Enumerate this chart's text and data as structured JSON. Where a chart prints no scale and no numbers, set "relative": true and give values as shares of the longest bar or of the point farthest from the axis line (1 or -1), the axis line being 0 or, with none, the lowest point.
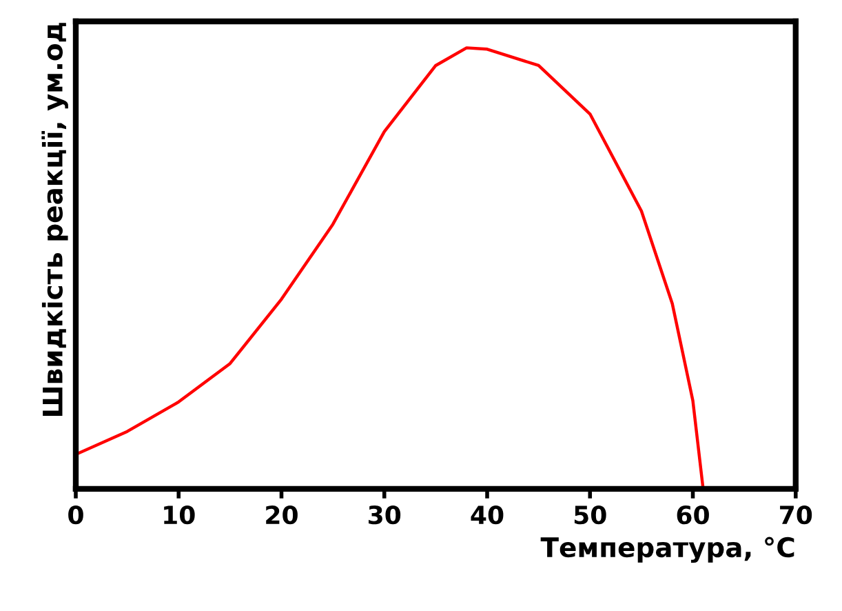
{
  "chart_data": {
    "type": "line",
    "relative": true,
    "xlabel": "Температура, °C",
    "ylabel": "Швидкість реакції, ум.од",
    "xlim": [
      0,
      70
    ],
    "xticks": [
      0,
      10,
      20,
      30,
      40,
      50,
      60,
      70
    ],
    "grid": false,
    "legend": false,
    "marker": "none",
    "line_style": "solid",
    "tick_labels": "x",
    "series": [
      {
        "color": "#ff0000",
        "x": [
          0,
          5,
          10,
          15,
          20,
          25,
          30,
          35,
          38,
          40,
          45,
          50,
          55,
          58,
          60,
          61
        ],
        "values": [
          0.078,
          0.13,
          0.197,
          0.284,
          0.43,
          0.6,
          0.81,
          0.96,
          1.0,
          0.997,
          0.96,
          0.85,
          0.63,
          0.42,
          0.2,
          0
        ]
      }
    ]
  }
}
